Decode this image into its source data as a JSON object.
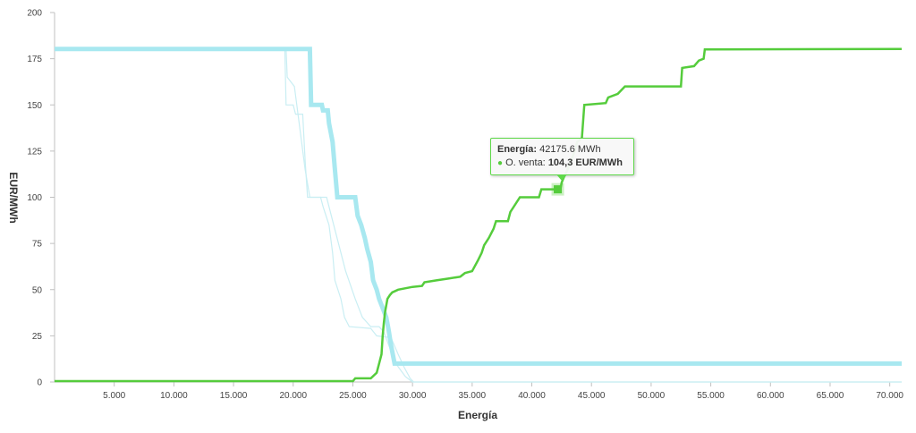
{
  "chart_data": {
    "type": "line",
    "title": "",
    "xlabel": "Energía",
    "ylabel": "EUR/MWh",
    "xlim": [
      0,
      71000
    ],
    "ylim": [
      0,
      200
    ],
    "x_ticks": [
      5000,
      10000,
      15000,
      20000,
      25000,
      30000,
      35000,
      40000,
      45000,
      50000,
      55000,
      60000,
      65000,
      70000
    ],
    "x_tick_labels": [
      "5.000",
      "10.000",
      "15.000",
      "20.000",
      "25.000",
      "30.000",
      "35.000",
      "40.000",
      "45.000",
      "50.000",
      "55.000",
      "60.000",
      "65.000",
      "70.000"
    ],
    "y_ticks": [
      0,
      25,
      50,
      75,
      100,
      125,
      150,
      175,
      200
    ],
    "y_tick_labels": [
      "0",
      "25",
      "50",
      "75",
      "100",
      "125",
      "150",
      "175",
      "200"
    ],
    "grid": false,
    "series": [
      {
        "name": "",
        "color": "#c9eef3",
        "width": 1.2,
        "points": [
          [
            0,
            180.3
          ],
          [
            19300,
            180.3
          ],
          [
            19400,
            150
          ],
          [
            20000,
            150
          ],
          [
            20200,
            145
          ],
          [
            20800,
            145
          ],
          [
            21000,
            120
          ],
          [
            21200,
            100
          ],
          [
            22300,
            100
          ],
          [
            22500,
            95
          ],
          [
            23000,
            85
          ],
          [
            23300,
            70
          ],
          [
            23500,
            55
          ],
          [
            24000,
            45
          ],
          [
            24300,
            35
          ],
          [
            24700,
            30
          ],
          [
            26500,
            29
          ],
          [
            27000,
            25
          ],
          [
            28200,
            24
          ],
          [
            28800,
            15
          ],
          [
            29300,
            8
          ],
          [
            29800,
            2
          ],
          [
            30100,
            0
          ],
          [
            71000,
            0
          ]
        ]
      },
      {
        "name": "",
        "color": "#c9eef3",
        "width": 1.2,
        "points": [
          [
            0,
            180.3
          ],
          [
            19400,
            180.3
          ],
          [
            19500,
            165
          ],
          [
            20100,
            160
          ],
          [
            20600,
            135
          ],
          [
            21000,
            115
          ],
          [
            21400,
            100
          ],
          [
            22800,
            100
          ],
          [
            23200,
            90
          ],
          [
            23800,
            75
          ],
          [
            24400,
            60
          ],
          [
            25200,
            45
          ],
          [
            25800,
            35
          ],
          [
            26500,
            30
          ],
          [
            27200,
            30
          ],
          [
            27600,
            27
          ],
          [
            28000,
            20
          ],
          [
            28600,
            10
          ],
          [
            29400,
            3
          ],
          [
            30000,
            0
          ],
          [
            71000,
            0
          ]
        ]
      },
      {
        "name": "",
        "color": "#a8e8f0",
        "width": 5,
        "points": [
          [
            0,
            180.3
          ],
          [
            21400,
            180.3
          ],
          [
            21500,
            150
          ],
          [
            22400,
            150
          ],
          [
            22500,
            147
          ],
          [
            22900,
            147
          ],
          [
            23000,
            140
          ],
          [
            23300,
            130
          ],
          [
            23500,
            115
          ],
          [
            23700,
            100
          ],
          [
            25200,
            100
          ],
          [
            25400,
            90
          ],
          [
            25700,
            85
          ],
          [
            26000,
            78
          ],
          [
            26200,
            72
          ],
          [
            26500,
            65
          ],
          [
            26700,
            55
          ],
          [
            27000,
            50
          ],
          [
            27200,
            45
          ],
          [
            27500,
            40
          ],
          [
            27800,
            35
          ],
          [
            28000,
            28
          ],
          [
            28200,
            20
          ],
          [
            28500,
            10
          ],
          [
            71000,
            10
          ]
        ]
      },
      {
        "name": "O. venta",
        "color": "#55cc3c",
        "width": 2.5,
        "points": [
          [
            0,
            0.5
          ],
          [
            25000,
            0.5
          ],
          [
            25200,
            2
          ],
          [
            26500,
            2
          ],
          [
            27000,
            5
          ],
          [
            27200,
            10
          ],
          [
            27400,
            15
          ],
          [
            27500,
            25
          ],
          [
            27600,
            32
          ],
          [
            27700,
            38
          ],
          [
            27900,
            45
          ],
          [
            28100,
            47
          ],
          [
            28300,
            48.5
          ],
          [
            28800,
            50
          ],
          [
            30000,
            51.5
          ],
          [
            30800,
            52
          ],
          [
            31000,
            54
          ],
          [
            32000,
            55
          ],
          [
            33000,
            56
          ],
          [
            34000,
            57
          ],
          [
            34400,
            59
          ],
          [
            35000,
            60
          ],
          [
            35500,
            66
          ],
          [
            35800,
            70
          ],
          [
            36000,
            74
          ],
          [
            36400,
            78
          ],
          [
            36800,
            83
          ],
          [
            37000,
            87
          ],
          [
            38000,
            87
          ],
          [
            38200,
            92
          ],
          [
            39000,
            100
          ],
          [
            40600,
            100
          ],
          [
            40800,
            104.3
          ],
          [
            42400,
            104.3
          ],
          [
            42500,
            108
          ],
          [
            42700,
            111
          ],
          [
            43000,
            115
          ],
          [
            43300,
            120
          ],
          [
            43600,
            125
          ],
          [
            43800,
            130
          ],
          [
            44200,
            132
          ],
          [
            44400,
            150
          ],
          [
            46200,
            151
          ],
          [
            46400,
            154
          ],
          [
            47200,
            156
          ],
          [
            47800,
            160
          ],
          [
            52500,
            160
          ],
          [
            52600,
            170
          ],
          [
            53600,
            171
          ],
          [
            54000,
            174
          ],
          [
            54400,
            175
          ],
          [
            54500,
            180
          ],
          [
            71000,
            180.3
          ]
        ]
      }
    ],
    "highlight": {
      "x": 42175.6,
      "y": 104.3,
      "color": "#55cc3c"
    }
  },
  "tooltip": {
    "x_label": "Energía:",
    "x_value": "42175.6 MWh",
    "series_label": "O. venta:",
    "series_value": "104,3 EUR/MWh"
  }
}
